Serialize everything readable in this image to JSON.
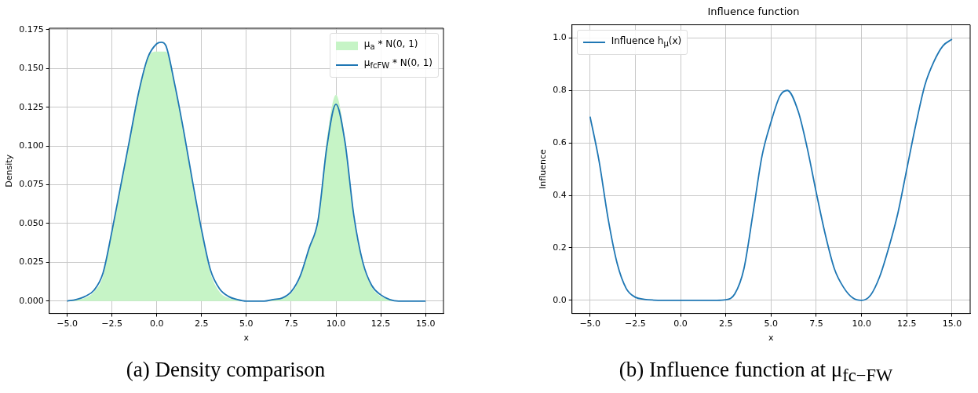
{
  "chart_data": [
    {
      "type": "line",
      "xlabel": "x",
      "ylabel": "Density",
      "annotations": [
        "(a) Density comparison"
      ],
      "legend": "top right",
      "grid": true,
      "marker": "none",
      "x": [
        -5,
        -4.5,
        -4,
        -3.5,
        -3,
        -2.5,
        -2,
        -1.5,
        -1,
        -0.5,
        0,
        0.25,
        0.5,
        1,
        1.5,
        2,
        2.5,
        3,
        3.5,
        4,
        4.5,
        5,
        5.5,
        6,
        6.5,
        7,
        7.5,
        8,
        8.5,
        9,
        9.5,
        10,
        10.5,
        11,
        11.5,
        12,
        12.5,
        13,
        13.5,
        14,
        14.5,
        15
      ],
      "xlim": [
        -6,
        16
      ],
      "ylim": [
        -0.008,
        0.176
      ],
      "xticks": [
        {
          "value": -5,
          "label": "−5.0"
        },
        {
          "value": -2.5,
          "label": "−2.5"
        },
        {
          "value": 0,
          "label": "0.0"
        },
        {
          "value": 2.5,
          "label": "2.5"
        },
        {
          "value": 5,
          "label": "5.0"
        },
        {
          "value": 7.5,
          "label": "7.5"
        },
        {
          "value": 10,
          "label": "10.0"
        },
        {
          "value": 12.5,
          "label": "12.5"
        },
        {
          "value": 15,
          "label": "15.0"
        }
      ],
      "yticks": [
        {
          "value": 0,
          "label": "0.000"
        },
        0.025,
        {
          "value": 0.05,
          "label": "0.050"
        },
        0.075,
        {
          "value": 0.1,
          "label": "0.100"
        },
        0.125,
        {
          "value": 0.15,
          "label": "0.150"
        },
        0.175
      ],
      "series": [
        {
          "type": "area",
          "name": "μ$_{a}$ * N(0, 1)",
          "color": "#c6f4c6",
          "values": [
            0,
            0.001,
            0.002,
            0.006,
            0.016,
            0.045,
            0.076,
            0.106,
            0.136,
            0.157,
            0.161,
            0.161,
            0.161,
            0.14,
            0.11,
            0.076,
            0.045,
            0.018,
            0.006,
            0.002,
            0.001,
            0,
            0,
            0,
            0.001,
            0.002,
            0.005,
            0.015,
            0.033,
            0.052,
            0.105,
            0.133,
            0.105,
            0.053,
            0.024,
            0.009,
            0.003,
            0.001,
            0,
            0,
            0,
            0
          ]
        },
        {
          "type": "line",
          "name": "μ$_{fcFW}$ * N(0, 1)",
          "color": "#1f77b4",
          "values": [
            0,
            0.001,
            0.003,
            0.007,
            0.018,
            0.045,
            0.075,
            0.105,
            0.135,
            0.157,
            0.166,
            0.167,
            0.165,
            0.14,
            0.11,
            0.077,
            0.046,
            0.02,
            0.008,
            0.003,
            0.001,
            0,
            0,
            0,
            0.001,
            0.002,
            0.006,
            0.016,
            0.034,
            0.052,
            0.1,
            0.127,
            0.103,
            0.055,
            0.025,
            0.01,
            0.004,
            0.001,
            0,
            0,
            0,
            0
          ]
        }
      ]
    },
    {
      "type": "line",
      "title": "Influence function",
      "xlabel": "x",
      "ylabel": "Influence",
      "annotations": [
        "(b) Influence function at μ$_{fc−FW}$"
      ],
      "legend": "top left",
      "grid": true,
      "marker": "none",
      "x": [
        -5,
        -4.5,
        -4,
        -3.5,
        -3,
        -2.5,
        -2,
        -1.5,
        -1,
        -0.5,
        0,
        0.5,
        1,
        1.5,
        2,
        2.5,
        3,
        3.5,
        4,
        4.5,
        5,
        5.5,
        5.9,
        6.5,
        7,
        7.5,
        8,
        8.5,
        9,
        9.5,
        10,
        10.5,
        11,
        11.5,
        12,
        12.5,
        13,
        13.5,
        14,
        14.5,
        15
      ],
      "xlim": [
        -6,
        16
      ],
      "ylim": [
        -0.05,
        1.05
      ],
      "xticks": [
        {
          "value": -5,
          "label": "−5.0"
        },
        {
          "value": -2.5,
          "label": "−2.5"
        },
        {
          "value": 0,
          "label": "0.0"
        },
        {
          "value": 2.5,
          "label": "2.5"
        },
        {
          "value": 5,
          "label": "5.0"
        },
        {
          "value": 7.5,
          "label": "7.5"
        },
        {
          "value": 10,
          "label": "10.0"
        },
        {
          "value": 12.5,
          "label": "12.5"
        },
        {
          "value": 15,
          "label": "15.0"
        }
      ],
      "yticks": [
        {
          "value": 0,
          "label": "0.0"
        },
        0.2,
        0.4,
        0.6,
        0.8,
        {
          "value": 1,
          "label": "1.0"
        }
      ],
      "series": [
        {
          "type": "line",
          "name": "Influence h$_{μ}$(x)",
          "color": "#1f77b4",
          "values": [
            0.7,
            0.53,
            0.31,
            0.14,
            0.045,
            0.012,
            0.004,
            0.001,
            0,
            0,
            0,
            0,
            0,
            0,
            0,
            0.002,
            0.025,
            0.12,
            0.33,
            0.55,
            0.68,
            0.78,
            0.8,
            0.72,
            0.58,
            0.41,
            0.25,
            0.12,
            0.05,
            0.01,
            0,
            0.02,
            0.09,
            0.2,
            0.33,
            0.5,
            0.67,
            0.82,
            0.91,
            0.97,
            0.995
          ]
        }
      ]
    }
  ]
}
